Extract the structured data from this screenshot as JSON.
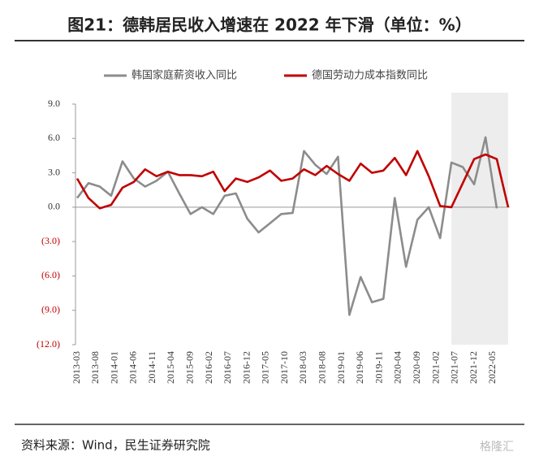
{
  "chart_data": {
    "type": "line",
    "title": "图21：德韩居民收入增速在 2022 年下滑（单位：%）",
    "source": "资料来源：Wind，民生证券研究院",
    "watermark": "格隆汇",
    "x": [
      "2013-03",
      "2013-06",
      "2013-09",
      "2013-12",
      "2014-03",
      "2014-06",
      "2014-09",
      "2014-12",
      "2015-03",
      "2015-06",
      "2015-09",
      "2015-12",
      "2016-03",
      "2016-06",
      "2016-09",
      "2016-12",
      "2017-03",
      "2017-06",
      "2017-09",
      "2017-12",
      "2018-03",
      "2018-06",
      "2018-09",
      "2018-12",
      "2019-03",
      "2019-06",
      "2019-09",
      "2019-12",
      "2020-03",
      "2020-06",
      "2020-09",
      "2020-12",
      "2021-03",
      "2021-06",
      "2021-09",
      "2021-12",
      "2022-03",
      "2022-06",
      "2022-09"
    ],
    "series": [
      {
        "name": "韩国家庭薪资收入同比",
        "color": "#8c8c8c",
        "values": [
          0.8,
          2.1,
          1.8,
          1.0,
          4.0,
          2.5,
          1.8,
          2.3,
          3.1,
          1.2,
          -0.6,
          0.0,
          -0.6,
          1.0,
          1.2,
          -1.0,
          -2.2,
          -1.4,
          -0.6,
          -0.5,
          4.9,
          3.7,
          2.9,
          4.4,
          -9.4,
          -6.1,
          -8.3,
          -8.0,
          0.8,
          -5.2,
          -1.1,
          0.0,
          -2.7,
          3.9,
          3.5,
          2.0,
          6.1,
          -0.1,
          null
        ]
      },
      {
        "name": "德国劳动力成本指数同比",
        "color": "#c00000",
        "values": [
          2.5,
          0.8,
          -0.1,
          0.2,
          1.7,
          2.2,
          3.3,
          2.7,
          3.1,
          2.8,
          2.8,
          2.7,
          3.1,
          1.4,
          2.5,
          2.2,
          2.6,
          3.2,
          2.3,
          2.5,
          3.3,
          2.8,
          3.6,
          2.9,
          2.3,
          3.8,
          3.0,
          3.2,
          4.3,
          2.8,
          4.9,
          2.7,
          0.1,
          0.0,
          2.1,
          4.2,
          4.6,
          4.2,
          0.0
        ]
      }
    ],
    "xticks": [
      "2013-03",
      "2013-08",
      "2014-01",
      "2014-06",
      "2014-11",
      "2015-04",
      "2015-09",
      "2016-02",
      "2016-07",
      "2016-12",
      "2017-05",
      "2017-10",
      "2018-03",
      "2018-08",
      "2019-01",
      "2019-06",
      "2019-11",
      "2020-04",
      "2020-09",
      "2021-02",
      "2021-07",
      "2021-12",
      "2022-05"
    ],
    "ylim": [
      -12,
      9
    ],
    "yticks": [
      {
        "value": -12,
        "label": "(12.0)"
      },
      {
        "value": -9,
        "label": "(9.0)"
      },
      {
        "value": -6,
        "label": "(6.0)"
      },
      {
        "value": -3,
        "label": "(3.0)"
      },
      {
        "value": 0,
        "label": "0.0"
      },
      {
        "value": 3,
        "label": "3.0"
      },
      {
        "value": 6,
        "label": "6.0"
      },
      {
        "value": 9,
        "label": "9.0"
      }
    ],
    "negative_tick_color": "#c00000",
    "shade": [
      "2021-06",
      "2022-09"
    ],
    "shade_color": "#ededed",
    "legend": "top"
  }
}
